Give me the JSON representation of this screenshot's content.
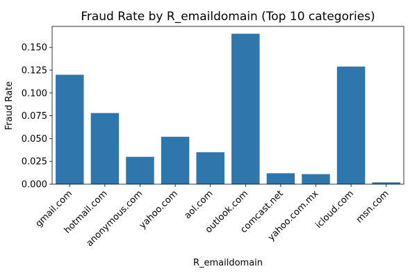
{
  "chart_data": {
    "type": "bar",
    "title": "Fraud Rate by R_emaildomain (Top 10 categories)",
    "xlabel": "R_emaildomain",
    "ylabel": "Fraud Rate",
    "categories": [
      "gmail.com",
      "hotmail.com",
      "anonymous.com",
      "yahoo.com",
      "aol.com",
      "outlook.com",
      "comcast.net",
      "yahoo.com.mx",
      "icloud.com",
      "msn.com"
    ],
    "values": [
      0.12,
      0.078,
      0.03,
      0.052,
      0.035,
      0.165,
      0.012,
      0.011,
      0.129,
      0.002
    ],
    "ylim": [
      0,
      0.173
    ],
    "yticks": [
      0.0,
      0.025,
      0.05,
      0.075,
      0.1,
      0.125,
      0.15
    ],
    "ytick_labels": [
      "0.000",
      "0.025",
      "0.050",
      "0.075",
      "0.100",
      "0.125",
      "0.150"
    ],
    "bar_color": "#2e76ac",
    "grid": false,
    "legend": "none"
  }
}
